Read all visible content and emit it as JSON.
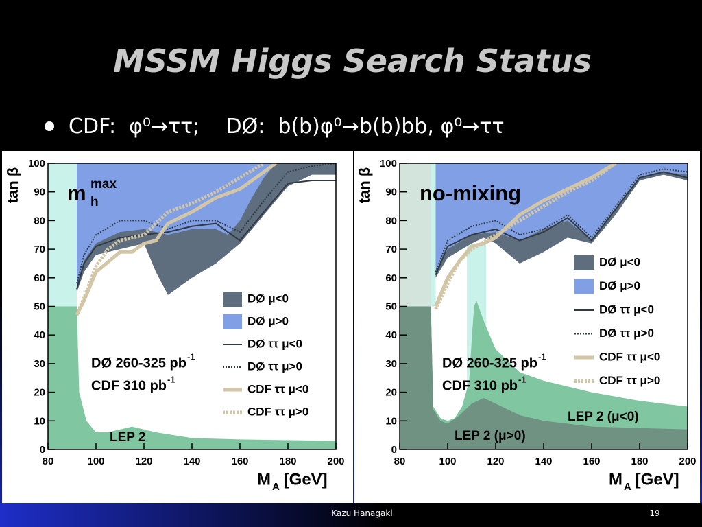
{
  "slide": {
    "title": "MSSM Higgs Search Status",
    "bullet": "CDF:  φ⁰→ττ;    DØ:  b(b)φ⁰→b(b)bb, φ⁰→ττ",
    "footer": "Kazu Hanagaki",
    "page": "19"
  },
  "chart_data": [
    {
      "type": "area",
      "scenario": {
        "text": "m",
        "sub": "h",
        "sup": "max"
      },
      "ylabel": "tan β",
      "xlabel": {
        "text": "M",
        "sub": "A",
        "after": " [GeV]"
      },
      "annotations": [
        {
          "text": "DØ 260-325 pb",
          "sup": "-1"
        },
        {
          "text": "CDF 310 pb",
          "sup": "-1"
        }
      ],
      "xlim": [
        80,
        200
      ],
      "xticks": [
        80,
        100,
        120,
        140,
        160,
        180,
        200
      ],
      "ylim": [
        0,
        100
      ],
      "yticks": [
        0,
        10,
        20,
        30,
        40,
        50,
        60,
        70,
        80,
        90,
        100
      ],
      "series": [
        {
          "color": "#c8f2ea",
          "fill": "above",
          "x": [
            80,
            92
          ],
          "values": [
            50,
            50
          ]
        },
        {
          "label": "LEP 2",
          "color": "#80c6a0",
          "fill": "below",
          "x": [
            80,
            92,
            93,
            96,
            100,
            105,
            115,
            125,
            140,
            160,
            200
          ],
          "values": [
            50,
            50,
            20,
            10,
            6,
            6,
            8,
            6,
            4,
            3.5,
            3
          ]
        },
        {
          "name": "DØ μ<0",
          "color": "#5f6e7e",
          "fill": "above",
          "x": [
            92,
            95,
            100,
            110,
            120,
            125,
            130,
            140,
            150,
            160,
            170,
            180,
            190,
            200
          ],
          "values": [
            55,
            62,
            68,
            70,
            72,
            62,
            54,
            60,
            65,
            72,
            82,
            92,
            96,
            96
          ]
        },
        {
          "name": "DØ μ>0",
          "color": "#809fe4",
          "fill": "above",
          "x": [
            92,
            95,
            100,
            110,
            120,
            130,
            140,
            150,
            155,
            160,
            165,
            170,
            175,
            200
          ],
          "values": [
            58,
            66,
            72,
            76,
            77,
            75,
            77,
            77,
            75,
            80,
            88,
            95,
            100,
            100
          ]
        },
        {
          "name": "DØ ττ μ<0",
          "color": "#2f3a44",
          "dash": "solid",
          "width": 2,
          "x": [
            92,
            95,
            100,
            110,
            120,
            130,
            140,
            150,
            160,
            170,
            180,
            190,
            200
          ],
          "values": [
            56,
            65,
            71,
            74,
            75,
            76,
            78,
            79,
            73,
            83,
            93,
            94,
            94
          ]
        },
        {
          "name": "DØ ττ μ>0",
          "color": "#2f3a44",
          "dash": "dotted",
          "width": 2,
          "x": [
            92,
            95,
            100,
            110,
            120,
            130,
            140,
            150,
            160,
            170,
            180,
            190,
            200
          ],
          "values": [
            58,
            68,
            75,
            80,
            80,
            77,
            80,
            80,
            76,
            87,
            97,
            99,
            100
          ]
        },
        {
          "name": "CDF ττ μ<0",
          "color": "#d2c6a6",
          "dash": "solid",
          "width": 5,
          "x": [
            92,
            95,
            100,
            110,
            115,
            120,
            125,
            130,
            140,
            150,
            160,
            170,
            175
          ],
          "values": [
            47,
            52,
            62,
            69,
            69,
            72,
            73,
            79,
            83,
            88,
            91,
            97,
            100
          ]
        },
        {
          "name": "CDF ττ μ>0",
          "color": "#d2c6a6",
          "dash": "dotted",
          "width": 5,
          "x": [
            92,
            95,
            100,
            105,
            110,
            120,
            130,
            140,
            150,
            160,
            170
          ],
          "values": [
            47,
            53,
            64,
            70,
            73,
            75,
            83,
            86,
            90,
            95,
            100
          ]
        }
      ]
    },
    {
      "type": "area",
      "scenario": {
        "text": "no-mixing"
      },
      "ylabel": "tan β",
      "xlabel": {
        "text": "M",
        "sub": "A",
        "after": " [GeV]"
      },
      "annotations": [
        {
          "text": "DØ 260-325 pb",
          "sup": "-1"
        },
        {
          "text": "CDF 310 pb",
          "sup": "-1"
        }
      ],
      "xlim": [
        80,
        200
      ],
      "xticks": [
        80,
        100,
        120,
        140,
        160,
        180,
        200
      ],
      "ylim": [
        0,
        100
      ],
      "yticks": [
        0,
        10,
        20,
        30,
        40,
        50,
        60,
        70,
        80,
        90,
        100
      ],
      "series": [
        {
          "color": "#d2e4dc",
          "fill": "above",
          "x": [
            80,
            93
          ],
          "values": [
            50,
            50
          ]
        },
        {
          "color": "#c8f2ea",
          "fill": "above",
          "x": [
            93,
            95
          ],
          "values": [
            50,
            50
          ]
        },
        {
          "color": "#c8f2ea",
          "fill": "below",
          "x": [
            108,
            116
          ],
          "values": [
            72,
            72
          ]
        },
        {
          "label": "LEP 2 (μ<0)",
          "color": "#80c6a0",
          "fill": "below",
          "x": [
            80,
            93,
            94,
            97,
            100,
            103,
            106,
            109,
            110,
            111,
            112,
            115,
            120,
            130,
            140,
            160,
            180,
            200
          ],
          "values": [
            50,
            50,
            15,
            11,
            10,
            11,
            15,
            24,
            38,
            50,
            52,
            45,
            35,
            27,
            24,
            20,
            17,
            15
          ]
        },
        {
          "label": "LEP 2 (μ>0)",
          "color": "#6f9282",
          "fill": "below",
          "x": [
            80,
            93,
            94,
            97,
            100,
            105,
            110,
            115,
            120,
            130,
            140,
            160,
            200
          ],
          "values": [
            50,
            50,
            14,
            10,
            9,
            12,
            16,
            18,
            16,
            12,
            10,
            8,
            7
          ]
        },
        {
          "name": "DØ μ<0",
          "color": "#5f6e7e",
          "fill": "above",
          "x": [
            95,
            100,
            110,
            115,
            120,
            130,
            140,
            150,
            160,
            170,
            180,
            190,
            200
          ],
          "values": [
            60,
            67,
            72,
            74,
            72,
            65,
            69,
            74,
            72,
            82,
            94,
            96,
            94
          ]
        },
        {
          "name": "DØ μ>0",
          "color": "#809fe4",
          "fill": "above",
          "x": [
            95,
            100,
            110,
            120,
            130,
            140,
            150,
            160,
            170,
            180,
            190,
            200
          ],
          "values": [
            62,
            70,
            75,
            76,
            73,
            77,
            80,
            73,
            84,
            95,
            97,
            96
          ]
        },
        {
          "name": "DØ ττ μ<0",
          "color": "#2f3a44",
          "dash": "solid",
          "width": 2,
          "x": [
            95,
            100,
            110,
            120,
            130,
            140,
            150,
            160,
            170,
            180,
            190,
            200
          ],
          "values": [
            61,
            71,
            75,
            77,
            73,
            76,
            81,
            73,
            84,
            95,
            97,
            95
          ]
        },
        {
          "name": "DØ ττ μ>0",
          "color": "#2f3a44",
          "dash": "dotted",
          "width": 2,
          "x": [
            95,
            100,
            110,
            120,
            130,
            140,
            150,
            160,
            170,
            180,
            190,
            200
          ],
          "values": [
            62,
            73,
            78,
            80,
            75,
            77,
            82,
            74,
            85,
            96,
            98,
            97
          ]
        },
        {
          "name": "CDF ττ μ<0",
          "color": "#d2c6a6",
          "dash": "solid",
          "width": 5,
          "x": [
            95,
            100,
            105,
            110,
            115,
            120,
            125,
            130,
            140,
            150,
            160,
            170
          ],
          "values": [
            50,
            60,
            66,
            71,
            72,
            74,
            78,
            82,
            87,
            91,
            95,
            100
          ]
        },
        {
          "name": "CDF ττ μ>0",
          "color": "#d2c6a6",
          "dash": "dotted",
          "width": 5,
          "x": [
            95,
            100,
            105,
            110,
            120,
            130,
            140,
            150,
            160,
            170
          ],
          "values": [
            49,
            58,
            66,
            70,
            75,
            80,
            85,
            90,
            94,
            100
          ]
        }
      ]
    }
  ]
}
